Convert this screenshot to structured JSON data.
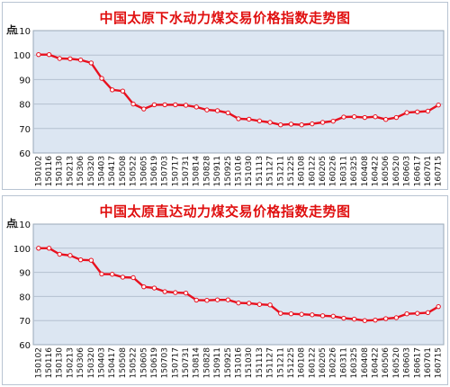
{
  "chart_data": [
    {
      "type": "line",
      "title": "中国太原下水动力煤交易价格指数走势图",
      "unit_label": "点",
      "ylim": [
        60,
        110
      ],
      "yticks": [
        60,
        70,
        80,
        90,
        100,
        110
      ],
      "categories": [
        "150102",
        "150116",
        "150130",
        "150213",
        "150306",
        "150320",
        "150403",
        "150417",
        "150508",
        "150522",
        "150605",
        "150619",
        "150703",
        "150717",
        "150731",
        "150814",
        "150828",
        "150911",
        "150925",
        "151016",
        "151030",
        "151113",
        "151127",
        "151211",
        "151225",
        "160108",
        "160122",
        "160205",
        "160226",
        "160311",
        "160325",
        "160408",
        "160422",
        "160506",
        "160520",
        "160603",
        "160617",
        "160701",
        "160715"
      ],
      "series": [
        {
          "color": "#e8101e",
          "values": [
            100.2,
            100.2,
            98.6,
            98.5,
            98.0,
            96.8,
            90.5,
            85.8,
            85.3,
            80.0,
            78.0,
            79.7,
            79.7,
            79.7,
            79.5,
            78.8,
            77.6,
            77.3,
            76.4,
            74.0,
            73.8,
            73.1,
            72.5,
            71.5,
            71.8,
            71.5,
            71.9,
            72.5,
            73.0,
            74.7,
            74.8,
            74.5,
            74.8,
            73.7,
            74.5,
            76.5,
            76.8,
            77.1,
            79.6
          ]
        }
      ]
    },
    {
      "type": "line",
      "title": "中国太原直达动力煤交易价格指数走势图",
      "unit_label": "点",
      "ylim": [
        60,
        110
      ],
      "yticks": [
        60,
        70,
        80,
        90,
        100,
        110
      ],
      "categories": [
        "150102",
        "150116",
        "150130",
        "150213",
        "150306",
        "150320",
        "150403",
        "150417",
        "150508",
        "150522",
        "150605",
        "150619",
        "150703",
        "150717",
        "150731",
        "150814",
        "150828",
        "150911",
        "150925",
        "151016",
        "151030",
        "151113",
        "151127",
        "151211",
        "151225",
        "160108",
        "160122",
        "160205",
        "160226",
        "160311",
        "160325",
        "160408",
        "160422",
        "160506",
        "160520",
        "160603",
        "160617",
        "160701",
        "160715"
      ],
      "series": [
        {
          "color": "#e8101e",
          "values": [
            100.0,
            100.0,
            97.5,
            97.0,
            95.2,
            95.0,
            89.3,
            89.2,
            88.0,
            87.8,
            84.0,
            83.5,
            82.0,
            81.6,
            81.4,
            78.5,
            78.4,
            78.6,
            78.6,
            77.3,
            77.2,
            76.7,
            76.5,
            73.0,
            72.8,
            72.6,
            72.4,
            72.0,
            71.8,
            71.0,
            70.6,
            70.0,
            70.2,
            70.8,
            71.2,
            72.8,
            73.0,
            73.3,
            75.8
          ]
        }
      ]
    }
  ]
}
